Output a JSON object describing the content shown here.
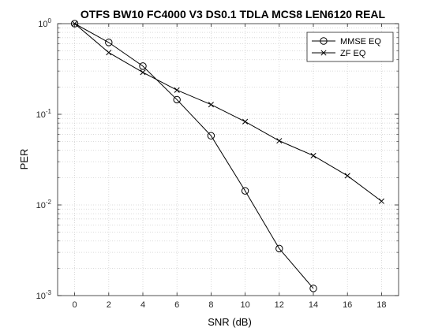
{
  "chart_data": {
    "type": "line",
    "title": "OTFS BW10 FC4000 V3 DS0.1 TDLA MCS8 LEN6120 REAL",
    "xlabel": "SNR (dB)",
    "ylabel": "PER",
    "xlim": [
      -1,
      19
    ],
    "ylim": [
      0.001,
      1
    ],
    "yscale": "log",
    "xticks": [
      0,
      2,
      4,
      6,
      8,
      10,
      12,
      14,
      16,
      18
    ],
    "xtick_labels": [
      "0",
      "2",
      "4",
      "6",
      "8",
      "10",
      "12",
      "14",
      "16",
      "18"
    ],
    "ytick_labels": [
      {
        "base": "10",
        "exp": "0"
      },
      {
        "base": "10",
        "exp": "-1"
      },
      {
        "base": "10",
        "exp": "-2"
      },
      {
        "base": "10",
        "exp": "-3"
      }
    ],
    "grid": true,
    "legend_position": "top-right",
    "series": [
      {
        "name": "MMSE EQ",
        "marker": "circle",
        "color": "#000000",
        "x": [
          0,
          2,
          4,
          6,
          8,
          10,
          12,
          14
        ],
        "y": [
          1.0,
          0.62,
          0.34,
          0.145,
          0.058,
          0.0143,
          0.0033,
          0.0012
        ]
      },
      {
        "name": "ZF EQ",
        "marker": "x",
        "color": "#000000",
        "x": [
          0,
          2,
          4,
          6,
          8,
          10,
          12,
          14,
          16,
          18
        ],
        "y": [
          1.0,
          0.48,
          0.29,
          0.185,
          0.128,
          0.083,
          0.051,
          0.035,
          0.021,
          0.011
        ]
      }
    ]
  }
}
